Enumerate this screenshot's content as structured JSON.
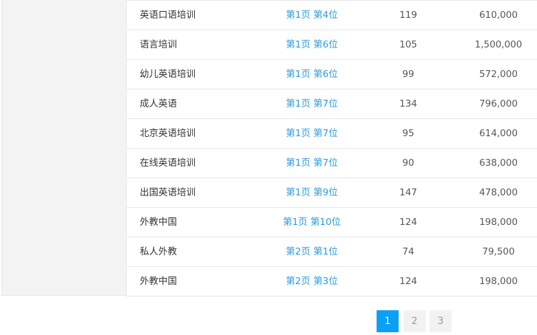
{
  "rows": [
    {
      "keyword": "英语口语培训",
      "rank": "第1页 第4位",
      "count": "119",
      "value": "610,000"
    },
    {
      "keyword": "语言培训",
      "rank": "第1页 第6位",
      "count": "105",
      "value": "1,500,000"
    },
    {
      "keyword": "幼儿英语培训",
      "rank": "第1页 第6位",
      "count": "99",
      "value": "572,000"
    },
    {
      "keyword": "成人英语",
      "rank": "第1页 第7位",
      "count": "134",
      "value": "796,000"
    },
    {
      "keyword": "北京英语培训",
      "rank": "第1页 第7位",
      "count": "95",
      "value": "614,000"
    },
    {
      "keyword": "在线英语培训",
      "rank": "第1页 第7位",
      "count": "90",
      "value": "638,000"
    },
    {
      "keyword": "出国英语培训",
      "rank": "第1页 第9位",
      "count": "147",
      "value": "478,000"
    },
    {
      "keyword": "外教中国",
      "rank": "第1页 第10位",
      "count": "124",
      "value": "198,000"
    },
    {
      "keyword": "私人外教",
      "rank": "第2页 第1位",
      "count": "74",
      "value": "79,500"
    },
    {
      "keyword": "外教中国",
      "rank": "第2页 第3位",
      "count": "124",
      "value": "198,000"
    }
  ],
  "pagination": {
    "pages": [
      "1",
      "2",
      "3"
    ],
    "current": "1"
  },
  "colors": {
    "accent": "#0aa0f5",
    "link": "#2a9be0"
  }
}
